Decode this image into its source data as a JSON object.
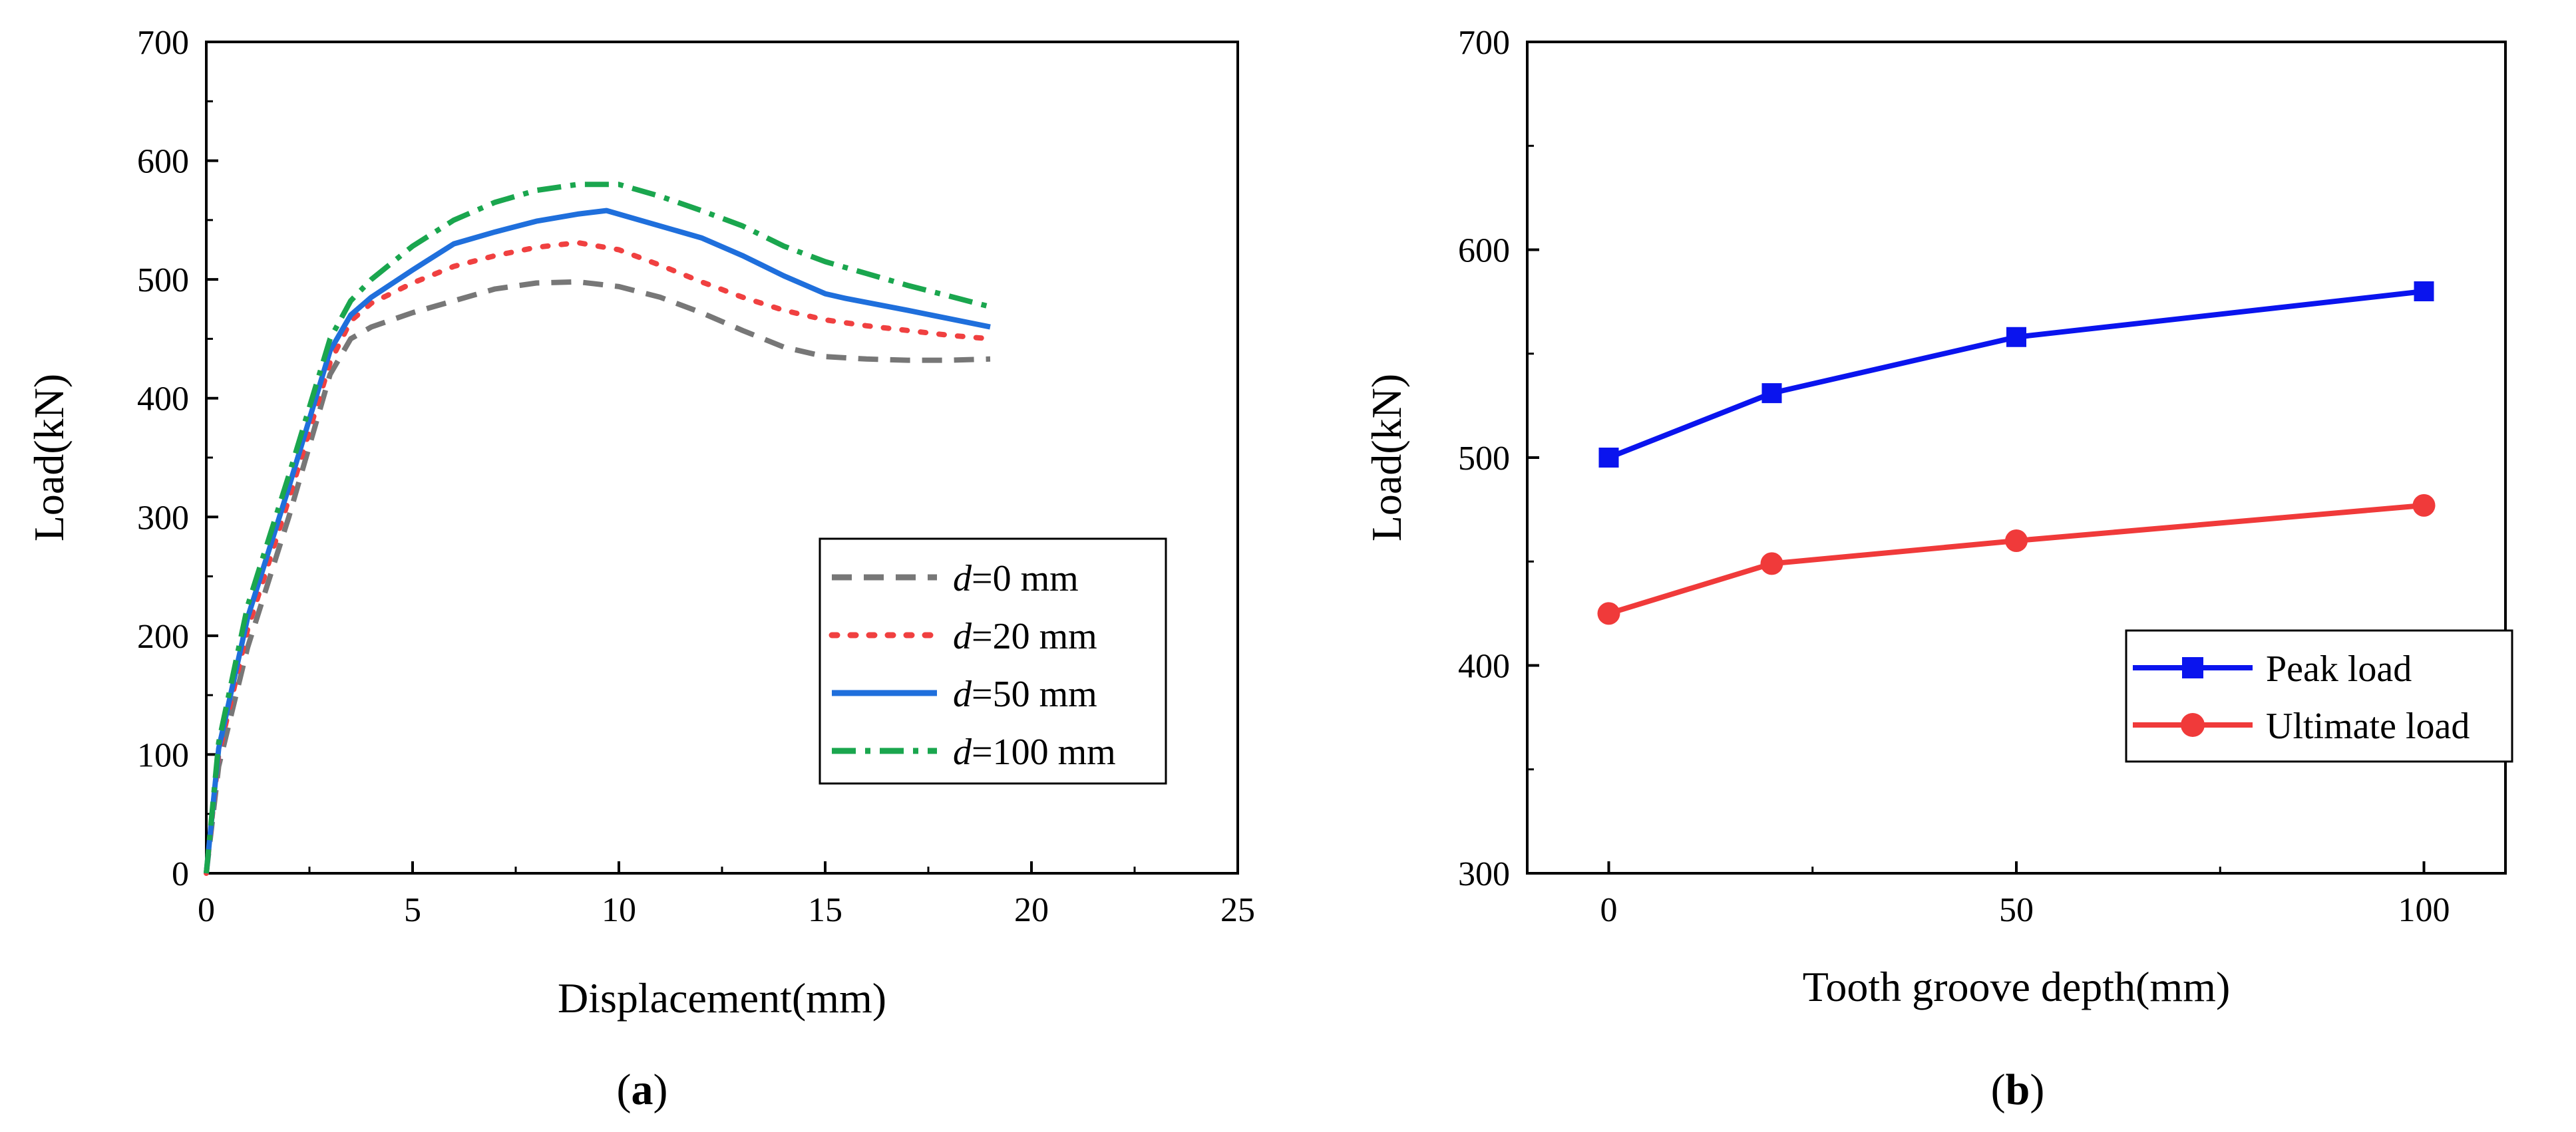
{
  "chart_data": [
    {
      "type": "line",
      "panel": "a",
      "caption": {
        "open": "(",
        "letter": "a",
        "close": ")"
      },
      "xlabel": "Displacement(mm)",
      "ylabel": "Load(kN)",
      "xlim": [
        0,
        25
      ],
      "ylim": [
        0,
        700
      ],
      "xticks": [
        "0",
        "5",
        "10",
        "15",
        "20",
        "25"
      ],
      "yticks": [
        "0",
        "100",
        "200",
        "300",
        "400",
        "500",
        "600",
        "700"
      ],
      "grid": false,
      "legend_position": "bottom-right",
      "series": [
        {
          "name": "d=0 mm",
          "label_italic": "d",
          "label_rest": "=0 mm",
          "color": "#777777",
          "style": "dash",
          "x": [
            0,
            0.3,
            1,
            2,
            3,
            3.5,
            4,
            5,
            6,
            7,
            8,
            9,
            10,
            11,
            12,
            13,
            14,
            15,
            16,
            17,
            18,
            19
          ],
          "y": [
            0,
            90,
            190,
            300,
            420,
            450,
            460,
            472,
            482,
            492,
            497,
            498,
            494,
            485,
            472,
            457,
            443,
            435,
            433,
            432,
            432,
            433
          ]
        },
        {
          "name": "d=20 mm",
          "label_italic": "d",
          "label_rest": "=20 mm",
          "color": "#f04040",
          "style": "dot",
          "x": [
            0,
            0.3,
            1,
            2,
            3,
            3.5,
            4,
            5,
            6,
            7,
            8,
            9,
            10,
            11,
            12,
            13,
            14,
            15,
            16,
            17,
            18,
            19
          ],
          "y": [
            0,
            100,
            205,
            315,
            430,
            465,
            480,
            497,
            511,
            520,
            527,
            531,
            525,
            512,
            498,
            485,
            474,
            466,
            461,
            457,
            453,
            450
          ]
        },
        {
          "name": "d=50 mm",
          "label_italic": "d",
          "label_rest": "=50 mm",
          "color": "#1f6fdc",
          "style": "solid",
          "x": [
            0,
            0.3,
            1,
            2,
            3,
            3.5,
            4,
            5,
            6,
            7,
            8,
            9,
            9.7,
            11,
            12,
            13,
            14,
            15,
            15.5,
            17,
            18,
            19
          ],
          "y": [
            0,
            105,
            215,
            325,
            440,
            470,
            485,
            508,
            530,
            540,
            549,
            555,
            558,
            545,
            535,
            520,
            503,
            488,
            484,
            474,
            467,
            460
          ]
        },
        {
          "name": "d=100 mm",
          "label_italic": "d",
          "label_rest": "=100 mm",
          "color": "#1aa64e",
          "style": "dashdot",
          "x": [
            0,
            0.3,
            1,
            2,
            3,
            3.5,
            4,
            5,
            6,
            7,
            8,
            9,
            10,
            11,
            12,
            13,
            14,
            15,
            16,
            17,
            18,
            19
          ],
          "y": [
            0,
            110,
            225,
            335,
            450,
            482,
            500,
            528,
            550,
            565,
            575,
            580,
            580,
            570,
            558,
            545,
            528,
            515,
            505,
            495,
            486,
            477
          ]
        }
      ]
    },
    {
      "type": "line",
      "panel": "b",
      "caption": {
        "open": "(",
        "letter": "b",
        "close": ")"
      },
      "xlabel": "Tooth groove depth(mm)",
      "ylabel": "Load(kN)",
      "xlim": [
        -10,
        110
      ],
      "ylim": [
        300,
        700
      ],
      "xticks": [
        "0",
        "50",
        "100"
      ],
      "yticks": [
        "300",
        "400",
        "500",
        "600",
        "700"
      ],
      "grid": false,
      "legend_position": "bottom-right",
      "series": [
        {
          "name": "Peak load",
          "color": "#0a14ee",
          "marker": "square",
          "x": [
            0,
            20,
            50,
            100
          ],
          "y": [
            500,
            531,
            558,
            580
          ]
        },
        {
          "name": "Ultimate load",
          "color": "#f03a3a",
          "marker": "circle",
          "x": [
            0,
            20,
            50,
            100
          ],
          "y": [
            425,
            449,
            460,
            477
          ]
        }
      ]
    }
  ]
}
